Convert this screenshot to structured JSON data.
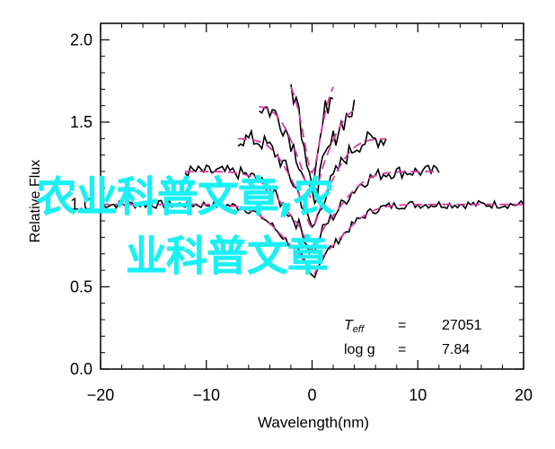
{
  "chart_data": {
    "type": "line",
    "title": "",
    "xlabel": "Wavelength(nm)",
    "ylabel": "Relative Flux",
    "xlim": [
      -20,
      20
    ],
    "ylim": [
      0.0,
      2.1
    ],
    "xticks": [
      "−20",
      "−10",
      "0",
      "10",
      "20"
    ],
    "yticks": [
      "0.0",
      "0.5",
      "1.0",
      "1.5",
      "2.0"
    ],
    "grid": false,
    "annotation": {
      "teff_label": "T",
      "teff_sub": "eff",
      "teff_eq": "=",
      "teff_value": "27051",
      "logg_label": "log g",
      "logg_eq": "=",
      "logg_value": "7.84"
    },
    "series": [
      {
        "role": "observed",
        "color": "#000000",
        "profiles": [
          {
            "offset": 0.0,
            "xmin": -20,
            "xmax": 20,
            "depth": 0.32,
            "width": 2.8
          },
          {
            "offset": 0.2,
            "xmin": -12,
            "xmax": 12,
            "depth": 0.36,
            "width": 2.6
          },
          {
            "offset": 0.4,
            "xmin": -7,
            "xmax": 7,
            "depth": 0.4,
            "width": 2.0
          },
          {
            "offset": 0.6,
            "xmin": -5,
            "xmax": 4,
            "depth": 0.42,
            "width": 1.7
          },
          {
            "offset": 0.8,
            "xmin": -2,
            "xmax": 2,
            "depth": 0.45,
            "width": 1.1
          }
        ]
      },
      {
        "role": "model",
        "color": "#d63aa0",
        "style": "dashed"
      }
    ]
  },
  "overlay": {
    "line1": "农业科普文章,农",
    "line2": "业科普文章"
  }
}
